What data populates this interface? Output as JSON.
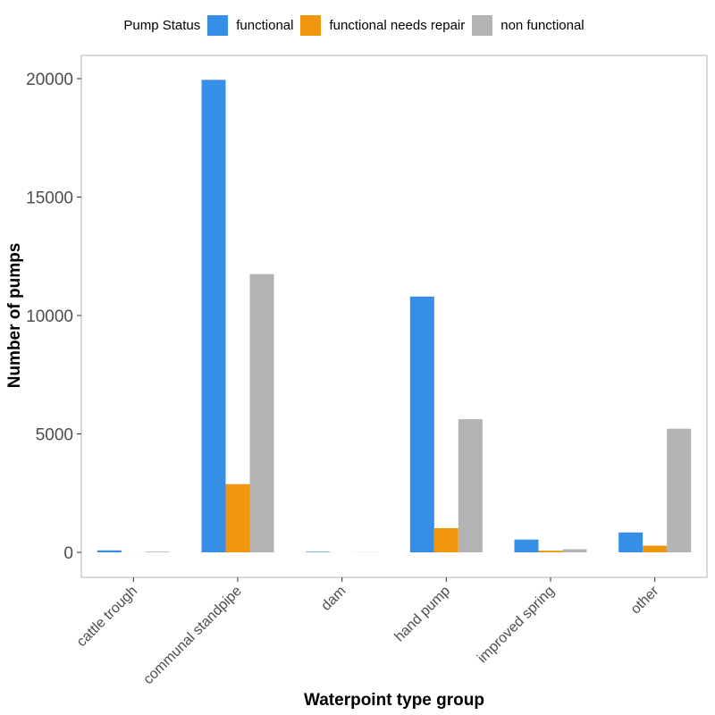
{
  "chart_data": {
    "type": "bar",
    "xlabel": "Waterpoint type group",
    "ylabel": "Number of pumps",
    "ylim": [
      -1000,
      21000
    ],
    "yticks": [
      0,
      5000,
      10000,
      15000,
      20000
    ],
    "grid": false,
    "legend_title": "Pump Status",
    "legend_position": "top",
    "categories": [
      "cattle trough",
      "communal standpipe",
      "dam",
      "hand pump",
      "improved spring",
      "other"
    ],
    "series": [
      {
        "name": "functional",
        "color": "#368ee6",
        "values": [
          84,
          19950,
          24,
          10800,
          540,
          840
        ]
      },
      {
        "name": "functional needs repair",
        "color": "#f0960f",
        "values": [
          2,
          2880,
          0,
          1020,
          70,
          280
        ]
      },
      {
        "name": "non functional",
        "color": "#b3b3b3",
        "values": [
          30,
          11750,
          6,
          5620,
          130,
          5220
        ]
      }
    ]
  }
}
